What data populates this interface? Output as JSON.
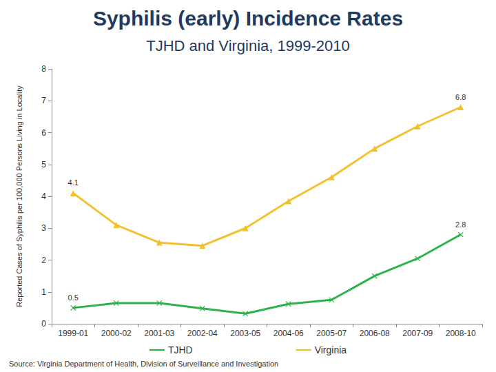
{
  "chart_data": {
    "type": "line",
    "title": "Syphilis (early) Incidence Rates",
    "subtitle": "TJHD and Virginia, 1999-2010",
    "y_label": "Reported Cases of Syphilis per 100,000 Persons Living in Locality",
    "source": "Source: Virginia Department of Health, Division of Surveillance and Investigation",
    "categories": [
      "1999-01",
      "2000-02",
      "2001-03",
      "2002-04",
      "2003-05",
      "2004-06",
      "2005-07",
      "2006-08",
      "2007-09",
      "2008-10"
    ],
    "series": [
      {
        "name": "TJHD",
        "color": "#2db34a",
        "marker": "x",
        "values": [
          0.5,
          0.65,
          0.65,
          0.48,
          0.32,
          0.62,
          0.75,
          1.5,
          2.05,
          2.8
        ],
        "value_labels": [
          "0.5",
          null,
          null,
          null,
          null,
          null,
          null,
          null,
          null,
          "2.8"
        ]
      },
      {
        "name": "Virginia",
        "color": "#f2c12e",
        "marker": "triangle",
        "values": [
          4.1,
          3.1,
          2.55,
          2.45,
          3.0,
          3.85,
          4.6,
          5.5,
          6.2,
          6.8
        ],
        "value_labels": [
          "4.1",
          null,
          null,
          null,
          null,
          null,
          null,
          null,
          null,
          "6.8"
        ]
      }
    ],
    "ylim": [
      0,
      8
    ],
    "yticks": [
      0,
      1,
      2,
      3,
      4,
      5,
      6,
      7,
      8
    ],
    "grid": false,
    "legend": "bottom",
    "data_labels": true
  }
}
